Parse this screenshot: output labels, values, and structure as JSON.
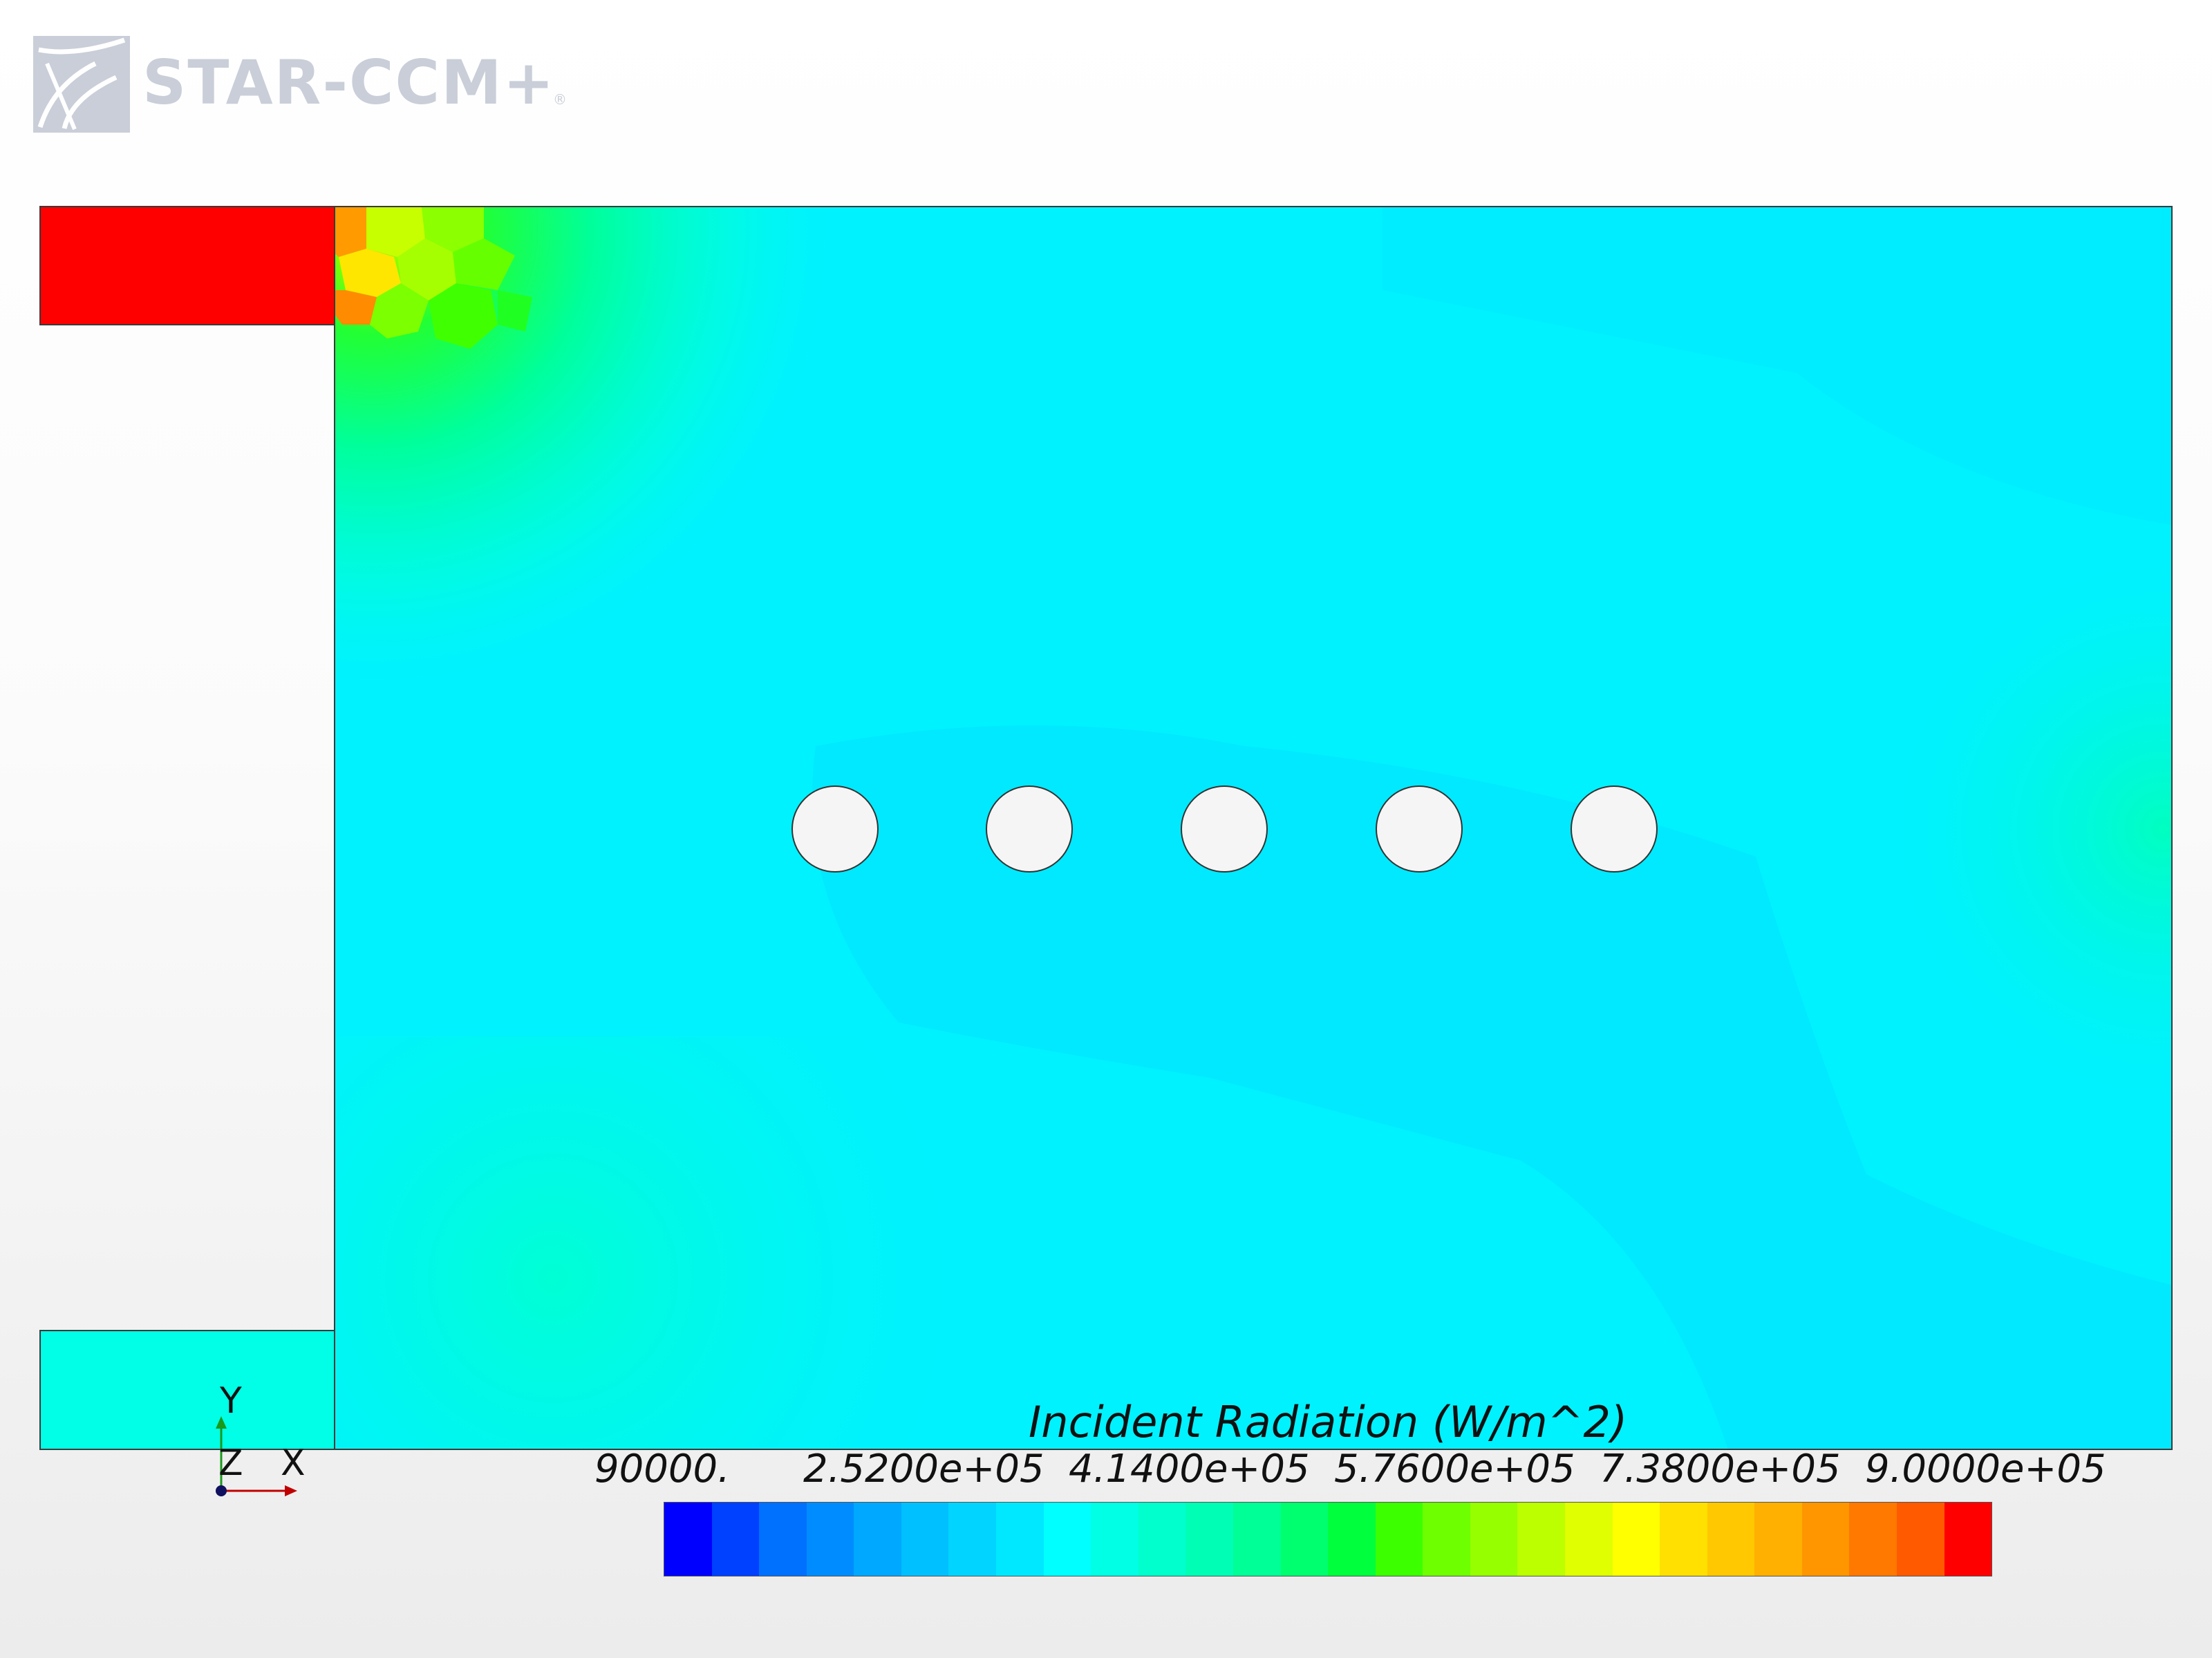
{
  "logo": {
    "text": "STAR-CCM+",
    "registered": "®"
  },
  "legend": {
    "title": "Incident Radiation (W/m^2)",
    "ticks": [
      "90000.",
      "2.5200e+05",
      "4.1400e+05",
      "5.7600e+05",
      "7.3800e+05",
      "9.0000e+05"
    ],
    "colors": [
      "#0000ff",
      "#0040ff",
      "#0070ff",
      "#008cff",
      "#00a8ff",
      "#00c0ff",
      "#00d4ff",
      "#00e8ff",
      "#00ffff",
      "#00ffe4",
      "#00ffcc",
      "#00ffb4",
      "#00ff96",
      "#00ff6e",
      "#00ff3c",
      "#3cff00",
      "#6eff00",
      "#96ff00",
      "#bbff00",
      "#e0ff00",
      "#ffff00",
      "#ffe000",
      "#ffc800",
      "#ffb000",
      "#ff9600",
      "#ff7800",
      "#ff5a00",
      "#ff0000"
    ]
  },
  "axes": {
    "y": "Y",
    "z": "Z",
    "x": "X"
  },
  "colors": {
    "red": "#ff0000",
    "cyan": "#00f2ff",
    "cylinder": "#f5f5f5"
  }
}
